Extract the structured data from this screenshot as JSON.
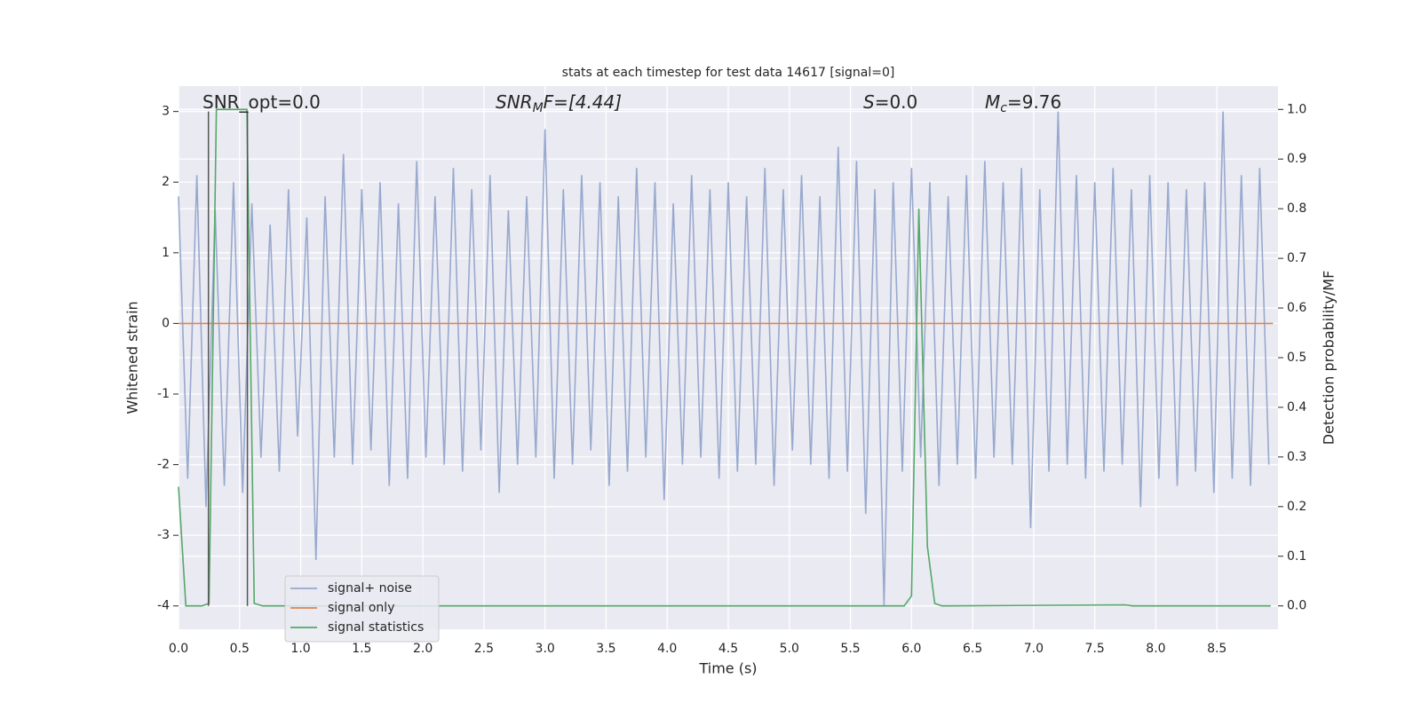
{
  "chart_data": {
    "type": "line",
    "title": "stats at each timestep for test data 14617 [signal=0]",
    "xlabel": "Time (s)",
    "ylabel": "Whitened strain",
    "y2label": "Detection probability/MF",
    "xlim": [
      0,
      9.0
    ],
    "ylim": [
      -4.33,
      3.36
    ],
    "y2lim": [
      -0.047,
      1.047
    ],
    "xticks": [
      {
        "value": 0,
        "label": "0.0"
      },
      0.5,
      {
        "value": 1,
        "label": "1.0"
      },
      1.5,
      {
        "value": 2,
        "label": "2.0"
      },
      2.5,
      {
        "value": 3,
        "label": "3.0"
      },
      3.5,
      {
        "value": 4,
        "label": "4.0"
      },
      4.5,
      {
        "value": 5,
        "label": "5.0"
      },
      5.5,
      {
        "value": 6,
        "label": "6.0"
      },
      6.5,
      {
        "value": 7,
        "label": "7.0"
      },
      7.5,
      {
        "value": 8,
        "label": "8.0"
      },
      8.5
    ],
    "yticks": [
      -4,
      -3,
      -2,
      -1,
      0,
      1,
      2,
      3
    ],
    "y2ticks": [
      {
        "value": 0,
        "label": "0.0"
      },
      0.1,
      0.2,
      0.3,
      0.4,
      0.5,
      0.6,
      0.7,
      0.8,
      0.9,
      {
        "value": 1,
        "label": "1.0"
      }
    ],
    "grid": true,
    "legend": "lower left",
    "series": [
      {
        "name": "signal+ noise",
        "color": "#98a9ce",
        "x": [
          0,
          0.075,
          0.15,
          0.225,
          0.3,
          0.375,
          0.45,
          0.525,
          0.6,
          0.675,
          0.75,
          0.825,
          0.9,
          0.975,
          1.05,
          1.125,
          1.2,
          1.275,
          1.35,
          1.425,
          1.5,
          1.575,
          1.65,
          1.725,
          1.8,
          1.875,
          1.95,
          2.025,
          2.1,
          2.175,
          2.25,
          2.325,
          2.4,
          2.475,
          2.55,
          2.625,
          2.7,
          2.775,
          2.85,
          2.925,
          3.0,
          3.075,
          3.15,
          3.225,
          3.3,
          3.375,
          3.45,
          3.525,
          3.6,
          3.675,
          3.75,
          3.825,
          3.9,
          3.975,
          4.05,
          4.125,
          4.2,
          4.275,
          4.35,
          4.425,
          4.5,
          4.575,
          4.65,
          4.725,
          4.8,
          4.875,
          4.95,
          5.025,
          5.1,
          5.175,
          5.25,
          5.325,
          5.4,
          5.475,
          5.55,
          5.625,
          5.7,
          5.775,
          5.85,
          5.925,
          6.0,
          6.075,
          6.15,
          6.225,
          6.3,
          6.375,
          6.45,
          6.525,
          6.6,
          6.675,
          6.75,
          6.825,
          6.9,
          6.975,
          7.05,
          7.125,
          7.2,
          7.275,
          7.35,
          7.425,
          7.5,
          7.575,
          7.65,
          7.725,
          7.8,
          7.875,
          7.95,
          8.025,
          8.1,
          8.175,
          8.25,
          8.325,
          8.4,
          8.475,
          8.55,
          8.625,
          8.7,
          8.775,
          8.85,
          8.925
        ],
        "values": [
          1.8,
          -2.2,
          2.1,
          -2.6,
          1.6,
          -2.3,
          2.0,
          -2.4,
          1.7,
          -1.9,
          1.4,
          -2.1,
          1.9,
          -1.6,
          1.5,
          -3.35,
          1.8,
          -1.9,
          2.4,
          -2.0,
          1.9,
          -1.8,
          2.0,
          -2.3,
          1.7,
          -2.2,
          2.3,
          -1.9,
          1.8,
          -2.0,
          2.2,
          -2.1,
          1.9,
          -1.8,
          2.1,
          -2.4,
          1.6,
          -2.0,
          1.8,
          -1.9,
          2.75,
          -2.2,
          1.9,
          -2.0,
          2.1,
          -1.8,
          2.0,
          -2.3,
          1.8,
          -2.1,
          2.2,
          -1.9,
          2.0,
          -2.5,
          1.7,
          -2.0,
          2.1,
          -1.9,
          1.9,
          -2.2,
          2.0,
          -2.1,
          1.8,
          -2.0,
          2.2,
          -2.3,
          1.9,
          -1.8,
          2.1,
          -2.0,
          1.8,
          -2.2,
          2.5,
          -2.1,
          2.3,
          -2.7,
          1.9,
          -4.0,
          2.0,
          -2.1,
          2.2,
          -1.9,
          2.0,
          -2.3,
          1.8,
          -2.0,
          2.1,
          -2.2,
          2.3,
          -1.9,
          2.0,
          -2.0,
          2.2,
          -2.9,
          1.9,
          -2.1,
          3.0,
          -2.0,
          2.1,
          -2.2,
          2.0,
          -2.1,
          2.2,
          -2.0,
          1.9,
          -2.6,
          2.1,
          -2.2,
          2.0,
          -2.3,
          1.9,
          -2.1,
          2.0,
          -2.4,
          3.0,
          -2.2,
          2.1,
          -2.3,
          2.2,
          -2.0
        ]
      },
      {
        "name": "signal only",
        "color": "#dd8452",
        "x": [
          0,
          8.96
        ],
        "values": [
          0,
          0
        ]
      },
      {
        "name": "signal statistics",
        "color": "#55a868",
        "axis": "y2",
        "x": [
          0,
          0.06,
          0.19,
          0.25,
          0.31,
          0.56,
          0.62,
          0.69,
          5.94,
          6.0,
          6.06,
          6.13,
          6.19,
          6.25,
          7.75,
          7.81,
          8.94
        ],
        "values": [
          0.24,
          0,
          0,
          0.005,
          1.0,
          1.0,
          0.005,
          0,
          0,
          0.02,
          0.8,
          0.12,
          0.005,
          0,
          0.002,
          0,
          0
        ]
      }
    ],
    "vlines": {
      "x": [
        0.245,
        0.564
      ],
      "ymin": -4,
      "ymax": 3,
      "color": "#555555"
    },
    "annotations": [
      {
        "main": "SNR_opt=0.0"
      },
      {
        "main": "SNR",
        "sub": "M",
        "rest": "F=[4.44]"
      },
      {
        "main": "S",
        "rest": "=0.0"
      },
      {
        "main": "M",
        "sub": "c",
        "rest": "=9.76"
      }
    ]
  }
}
